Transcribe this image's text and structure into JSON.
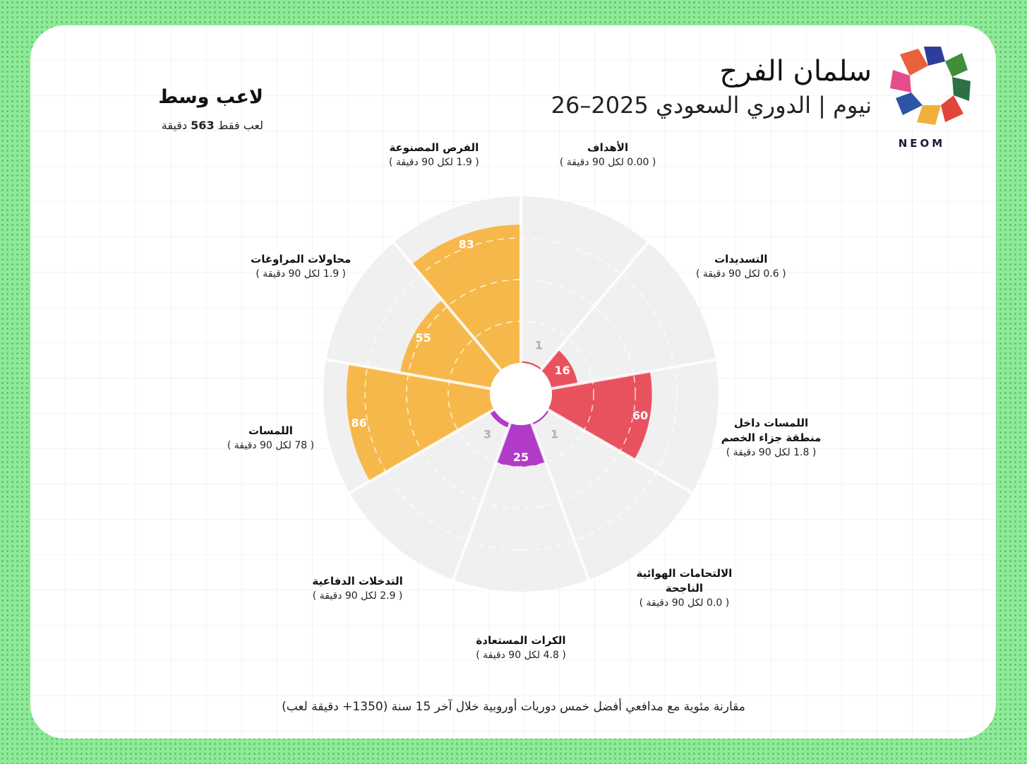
{
  "header": {
    "player_name": "سلمان الفرج",
    "subtitle": "نيوم | الدوري السعودي 2025–26",
    "role": "لاعب وسط",
    "minutes_prefix": "لعب فقط",
    "minutes_value": "563",
    "minutes_suffix": "دقيقة"
  },
  "logo": {
    "word": "NEOM",
    "icon": "neom-flower-logo"
  },
  "footnote": "مقارنة مئوية مع مدافعي أفضل خمس دوريات أوروبية خلال آخر 15 سنة (1350+ دقيقة لعب)",
  "colors": {
    "possession": "#f7b84b",
    "attack": "#e8525e",
    "defence": "#b13bc6",
    "background_ring": "#f0f0f0",
    "page_bg": "#8deb98"
  },
  "chart_data": {
    "type": "radial-bar",
    "max": 100,
    "gridlines": [
      25,
      50,
      75
    ],
    "categories": [
      {
        "label": "الأهداف",
        "sub": "( 0.00 لكل 90 دقيقة )",
        "value": 1,
        "group": "attack"
      },
      {
        "label": "التسديدات",
        "sub": "( 0.6 لكل 90 دقيقة )",
        "value": 16,
        "group": "attack"
      },
      {
        "label": "اللمسات داخل منطقة جزاء الخصم",
        "label_lines": [
          "اللمسات داخل",
          "منطقة جزاء الخصم"
        ],
        "sub": "( 1.8 لكل 90 دقيقة )",
        "value": 60,
        "group": "attack"
      },
      {
        "label": "الالتحامات الهوائية الناجحة",
        "label_lines": [
          "الالتحامات الهوائية",
          "الناجحة"
        ],
        "sub": "( 0.0 لكل 90 دقيقة )",
        "value": 1,
        "group": "defence"
      },
      {
        "label": "الكرات المستعادة",
        "sub": "( 4.8 لكل 90 دقيقة )",
        "value": 25,
        "group": "defence"
      },
      {
        "label": "التدخلات الدفاعية",
        "sub": "( 2.9 لكل 90 دقيقة )",
        "value": 3,
        "group": "defence"
      },
      {
        "label": "اللمسات",
        "sub": "( 78 لكل 90 دقيقة )",
        "value": 86,
        "group": "possession"
      },
      {
        "label": "محاولات المراوغات",
        "sub": "( 1.9 لكل 90 دقيقة )",
        "value": 55,
        "group": "possession"
      },
      {
        "label": "الفرص المصنوعة",
        "sub": "( 1.9 لكل 90 دقيقة )",
        "value": 83,
        "group": "possession"
      }
    ]
  }
}
